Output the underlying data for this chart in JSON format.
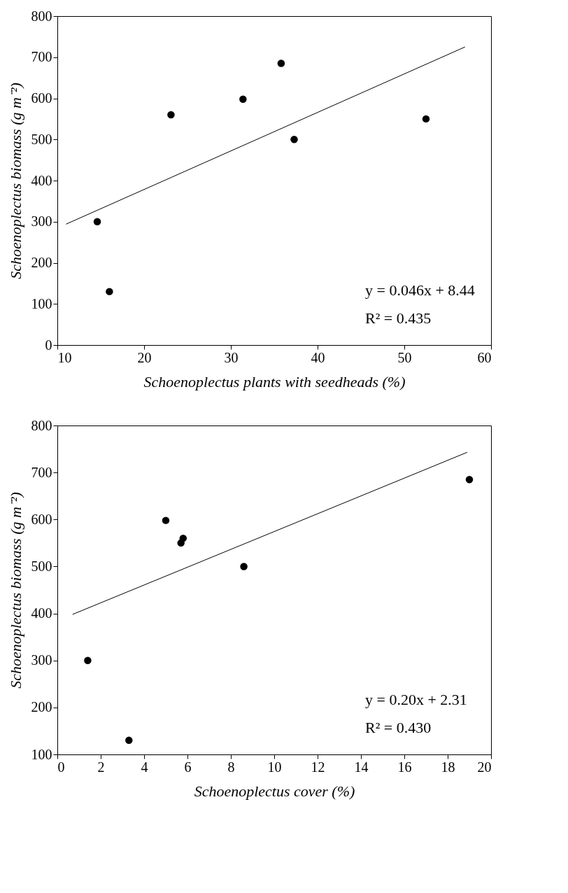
{
  "chart_data": [
    {
      "type": "scatter",
      "xlabel": "Schoenoplectus plants with seedheads (%)",
      "ylabel": "Schoenoplectus biomass (g m⁻²)",
      "xlim": [
        10,
        60
      ],
      "xticks": [
        10,
        20,
        30,
        40,
        50,
        60
      ],
      "ylim": [
        0,
        800
      ],
      "yticks": [
        0,
        100,
        200,
        300,
        400,
        500,
        600,
        700,
        800
      ],
      "grid": false,
      "series": [
        {
          "type": "scatter",
          "marker": "circle",
          "color": "#000000",
          "x": [
            14.6,
            16.0,
            23.1,
            31.4,
            35.8,
            37.3,
            52.5
          ],
          "values": [
            300,
            130,
            560,
            598,
            685,
            500,
            550
          ]
        },
        {
          "type": "line",
          "color": "#000000",
          "x": [
            11,
            57
          ],
          "values": [
            294,
            725
          ]
        }
      ],
      "annotations": [
        "y = 0.046x + 8.44",
        "R² = 0.435"
      ]
    },
    {
      "type": "scatter",
      "xlabel": "Schoenoplectus cover (%)",
      "ylabel": "Schoenoplectus biomass (g m⁻²)",
      "xlim": [
        0,
        20
      ],
      "xticks": [
        0,
        2,
        4,
        6,
        8,
        10,
        12,
        14,
        16,
        18,
        20
      ],
      "ylim": [
        100,
        800
      ],
      "yticks": [
        100,
        200,
        300,
        400,
        500,
        600,
        700,
        800
      ],
      "grid": false,
      "series": [
        {
          "type": "scatter",
          "marker": "circle",
          "color": "#000000",
          "x": [
            1.4,
            3.3,
            5.0,
            5.7,
            5.8,
            8.6,
            19.0
          ],
          "values": [
            300,
            130,
            598,
            550,
            560,
            500,
            685
          ]
        },
        {
          "type": "line",
          "color": "#000000",
          "x": [
            0.7,
            18.9
          ],
          "values": [
            398,
            743
          ]
        }
      ],
      "annotations": [
        "y = 0.20x + 2.31",
        "R² = 0.430"
      ]
    }
  ]
}
